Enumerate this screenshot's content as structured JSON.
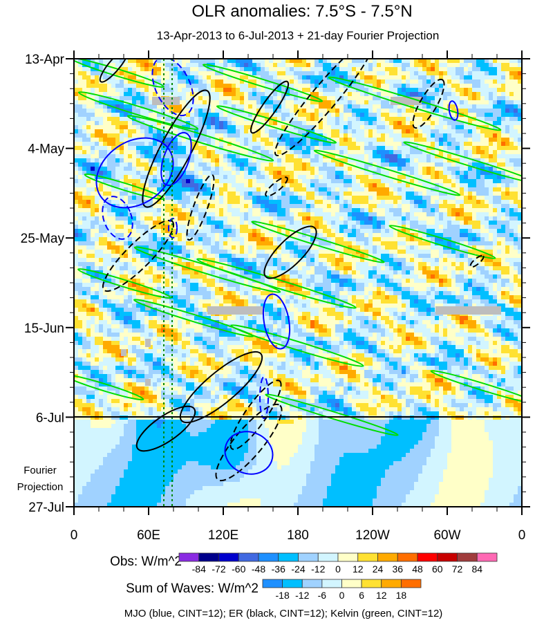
{
  "chart_data": {
    "type": "heatmap",
    "title": "OLR anomalies: 7.5°S - 7.5°N",
    "subtitle": "13-Apr-2013 to 6-Jul-2013 + 21-day Fourier Projection",
    "x_ticks": [
      "0",
      "60E",
      "120E",
      "180",
      "120W",
      "60W",
      "0"
    ],
    "x_range": [
      0,
      360
    ],
    "y_ticks": [
      "13-Apr",
      "4-May",
      "25-May",
      "15-Jun",
      "6-Jul",
      "27-Jul"
    ],
    "projection_label_line1": "Fourier",
    "projection_label_line2": "Projection",
    "projection_start": "6-Jul",
    "obs_colorbar": {
      "label": "Obs: W/m^2",
      "levels": [
        "-84",
        "-72",
        "-60",
        "-48",
        "-36",
        "-24",
        "-12",
        "0",
        "12",
        "24",
        "36",
        "48",
        "60",
        "72",
        "84"
      ],
      "colors": [
        "#8a2be2",
        "#00008b",
        "#0000cd",
        "#4169e1",
        "#1e90ff",
        "#00bfff",
        "#a0d2ff",
        "#d2f5ff",
        "#ffffc8",
        "#ffe132",
        "#ffaa00",
        "#ff6e00",
        "#ff0000",
        "#c80000",
        "#a03c3c",
        "#ff69b4"
      ]
    },
    "waves_colorbar": {
      "label": "Sum of Waves: W/m^2",
      "levels": [
        "-18",
        "-12",
        "-6",
        "0",
        "6",
        "12",
        "18"
      ],
      "colors": [
        "#1e90ff",
        "#00bfff",
        "#a0d2ff",
        "#d2f5ff",
        "#ffffc8",
        "#ffe132",
        "#ffaa00",
        "#ff6e00"
      ]
    },
    "contour_note": "MJO (blue, CINT=12); ER (black, CINT=12); Kelvin (green, CINT=12)",
    "contour_colors": {
      "mjo": "#0000ff",
      "er": "#000000",
      "kelvin": "#00dd00"
    }
  }
}
